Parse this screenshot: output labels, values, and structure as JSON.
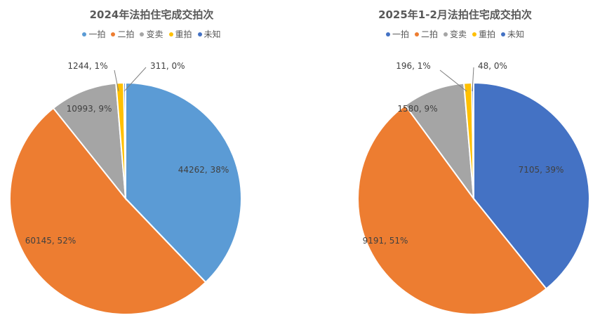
{
  "colors": {
    "series": [
      "#5B9BD5",
      "#ED7D31",
      "#A5A5A5",
      "#FFC000",
      "#4472C4"
    ],
    "series_right": [
      "#4472C4",
      "#ED7D31",
      "#A5A5A5",
      "#FFC000",
      "#4472C4"
    ]
  },
  "chart_data": [
    {
      "type": "pie",
      "title": "2024年法拍住宅成交拍次",
      "legend": [
        "一拍",
        "二拍",
        "变卖",
        "重拍",
        "未知"
      ],
      "legend_position": "top",
      "slices": [
        {
          "name": "一拍",
          "value": 44262,
          "label": "44262, 38%"
        },
        {
          "name": "二拍",
          "value": 60145,
          "label": "60145, 52%"
        },
        {
          "name": "变卖",
          "value": 10993,
          "label": "10993, 9%"
        },
        {
          "name": "重拍",
          "value": 1244,
          "label": "1244, 1%"
        },
        {
          "name": "未知",
          "value": 311,
          "label": "311, 0%"
        }
      ]
    },
    {
      "type": "pie",
      "title": "2025年1-2月法拍住宅成交拍次",
      "legend": [
        "一拍",
        "二拍",
        "变卖",
        "重拍",
        "未知"
      ],
      "legend_position": "top",
      "slices": [
        {
          "name": "一拍",
          "value": 7105,
          "label": "7105, 39%"
        },
        {
          "name": "二拍",
          "value": 9191,
          "label": "9191, 51%"
        },
        {
          "name": "变卖",
          "value": 1580,
          "label": "1580, 9%"
        },
        {
          "name": "重拍",
          "value": 196,
          "label": "196, 1%"
        },
        {
          "name": "未知",
          "value": 48,
          "label": "48, 0%"
        }
      ]
    }
  ]
}
